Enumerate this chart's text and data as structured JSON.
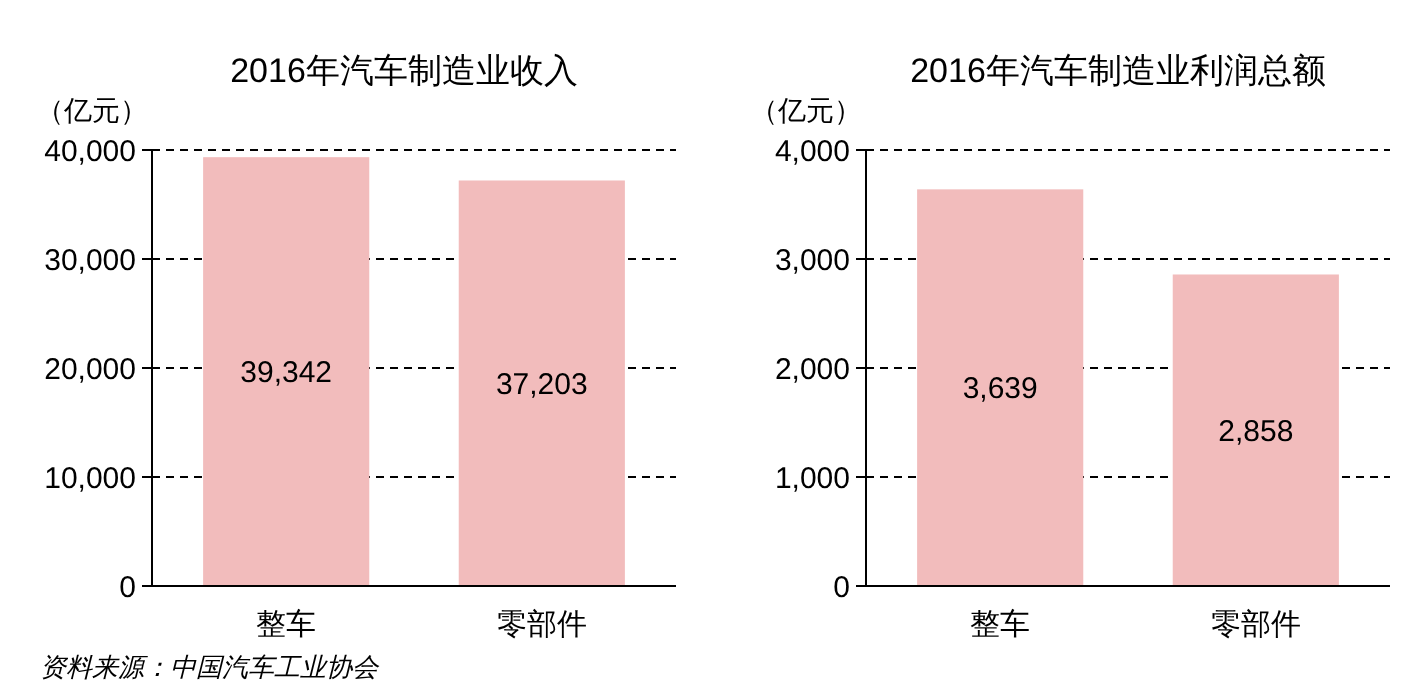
{
  "chart_data": [
    {
      "type": "bar",
      "title": "2016年汽车制造业收入",
      "ylabel": "（亿元）",
      "categories": [
        "整车",
        "零部件"
      ],
      "values": [
        39342,
        37203
      ],
      "value_labels": [
        "39,342",
        "37,203"
      ],
      "color": "#f2bcbc",
      "ylim": [
        0,
        40000
      ],
      "yticks": [
        0,
        {
          "value": 10000,
          "label": "10,000"
        },
        {
          "value": 20000,
          "label": "20,000"
        },
        {
          "value": 30000,
          "label": "30,000"
        },
        {
          "value": 40000,
          "label": "40,000"
        }
      ],
      "grid": "y",
      "annotations": [
        "资料来源：中国汽车工业协会"
      ]
    },
    {
      "type": "bar",
      "title": "2016年汽车制造业利润总额",
      "ylabel": "（亿元）",
      "categories": [
        "整车",
        "零部件"
      ],
      "values": [
        3639,
        2858
      ],
      "value_labels": [
        "3,639",
        "2,858"
      ],
      "color": "#f2bcbc",
      "ylim": [
        0,
        4000
      ],
      "yticks": [
        0,
        {
          "value": 1000,
          "label": "1,000"
        },
        {
          "value": 2000,
          "label": "2,000"
        },
        {
          "value": 3000,
          "label": "3,000"
        },
        {
          "value": 4000,
          "label": "4,000"
        }
      ],
      "grid": "y"
    }
  ]
}
